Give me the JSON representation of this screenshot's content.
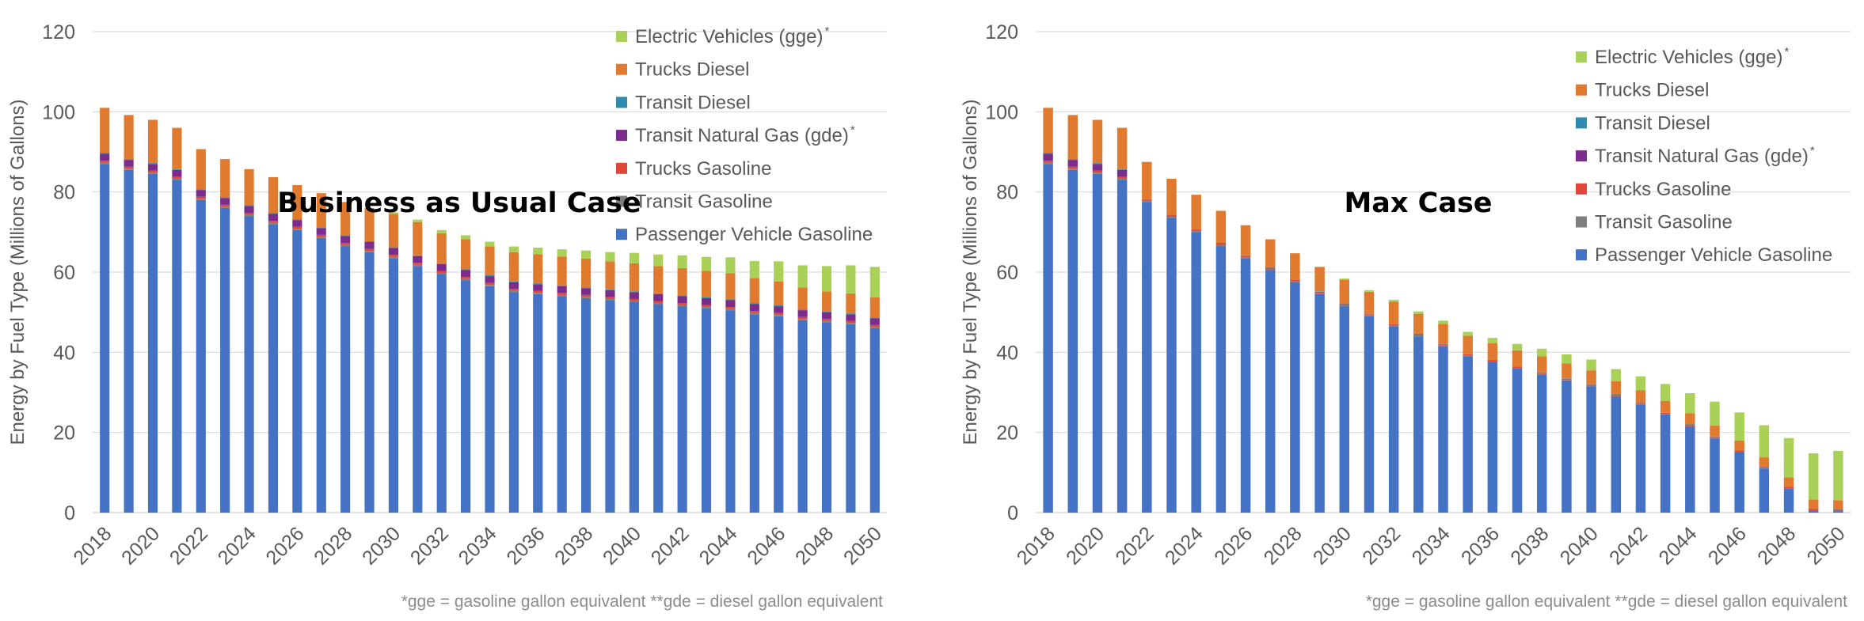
{
  "chart_data": [
    {
      "type": "bar",
      "stacked": true,
      "title": "Business as Usual Case",
      "ylabel": "Energy by Fuel Type (Millions of Gallons)",
      "xlabel": "",
      "ylim": [
        0,
        120
      ],
      "yticks": [
        0,
        20,
        40,
        60,
        80,
        100,
        120
      ],
      "grid": true,
      "legend_position": "top-right",
      "footnote": "*gge = gasoline gallon equivalent   **gde = diesel gallon equivalent",
      "categories": [
        "2018",
        "2019",
        "2020",
        "2021",
        "2022",
        "2023",
        "2024",
        "2025",
        "2026",
        "2027",
        "2028",
        "2029",
        "2030",
        "2031",
        "2032",
        "2033",
        "2034",
        "2035",
        "2036",
        "2037",
        "2038",
        "2039",
        "2040",
        "2041",
        "2042",
        "2043",
        "2044",
        "2045",
        "2046",
        "2047",
        "2048",
        "2049",
        "2050"
      ],
      "x_tick_labels": [
        "2018",
        "2020",
        "2022",
        "2024",
        "2026",
        "2028",
        "2030",
        "2032",
        "2034",
        "2036",
        "2038",
        "2040",
        "2042",
        "2044",
        "2046",
        "2048",
        "2050"
      ],
      "series": [
        {
          "name": "Passenger Vehicle Gasoline",
          "legend_label": "Passenger Vehicle Gasoline",
          "legend_sup": "",
          "color": "#4472c4",
          "values": [
            87,
            85.5,
            84.5,
            83,
            78,
            76,
            74,
            72,
            70.5,
            68.5,
            66.5,
            65,
            63.5,
            61.5,
            59.5,
            58,
            56.5,
            55,
            54.5,
            54,
            53.5,
            53,
            52.5,
            52,
            51.5,
            51,
            50.5,
            49.5,
            49,
            48,
            47.5,
            47,
            46
          ]
        },
        {
          "name": "Transit Gasoline",
          "legend_label": "Transit Gasoline",
          "legend_sup": "",
          "color": "#7f7f7f",
          "values": [
            0.3,
            0.3,
            0.3,
            0.3,
            0.3,
            0.3,
            0.3,
            0.3,
            0.3,
            0.3,
            0.3,
            0.3,
            0.3,
            0.3,
            0.3,
            0.3,
            0.3,
            0.3,
            0.3,
            0.3,
            0.3,
            0.3,
            0.3,
            0.3,
            0.3,
            0.3,
            0.3,
            0.3,
            0.3,
            0.3,
            0.3,
            0.3,
            0.3
          ]
        },
        {
          "name": "Trucks Gasoline",
          "legend_label": "Trucks Gasoline",
          "legend_sup": "",
          "color": "#e0463a",
          "values": [
            0.5,
            0.5,
            0.5,
            0.5,
            0.5,
            0.5,
            0.5,
            0.5,
            0.5,
            0.5,
            0.5,
            0.5,
            0.5,
            0.5,
            0.5,
            0.5,
            0.5,
            0.5,
            0.5,
            0.5,
            0.5,
            0.5,
            0.5,
            0.5,
            0.5,
            0.5,
            0.5,
            0.5,
            0.5,
            0.5,
            0.5,
            0.5,
            0.5
          ]
        },
        {
          "name": "Transit Natural Gas (gde)",
          "legend_label": "Transit Natural Gas (gde)",
          "legend_sup": "*",
          "color": "#7b2c8c",
          "values": [
            1.7,
            1.7,
            1.7,
            1.7,
            1.7,
            1.7,
            1.7,
            1.7,
            1.7,
            1.7,
            1.7,
            1.7,
            1.7,
            1.7,
            1.7,
            1.7,
            1.7,
            1.7,
            1.7,
            1.7,
            1.7,
            1.7,
            1.7,
            1.7,
            1.7,
            1.7,
            1.7,
            1.7,
            1.7,
            1.7,
            1.7,
            1.7,
            1.7
          ]
        },
        {
          "name": "Transit Diesel",
          "legend_label": "Transit Diesel",
          "legend_sup": "",
          "color": "#2e8bad",
          "values": [
            0.2,
            0.2,
            0.2,
            0.2,
            0.2,
            0.2,
            0.2,
            0.2,
            0.2,
            0.2,
            0.2,
            0.2,
            0.2,
            0.2,
            0.2,
            0.2,
            0.2,
            0.2,
            0.2,
            0.2,
            0.2,
            0.2,
            0.2,
            0.2,
            0.2,
            0.2,
            0.2,
            0.2,
            0.2,
            0.2,
            0.2,
            0.2,
            0.2
          ]
        },
        {
          "name": "Trucks Diesel",
          "legend_label": "Trucks Diesel",
          "legend_sup": "",
          "color": "#e07a2e",
          "values": [
            11.3,
            11,
            10.8,
            10.3,
            10,
            9.5,
            9,
            9,
            8.5,
            8.5,
            8.3,
            8.3,
            8.3,
            8.3,
            7.5,
            7.5,
            7.2,
            7.3,
            7.3,
            7.2,
            7.2,
            7,
            7,
            6.8,
            6.8,
            6.6,
            6.5,
            6.3,
            6,
            5.5,
            5,
            5,
            5
          ]
        },
        {
          "name": "Electric Vehicles (gge)",
          "legend_label": "Electric Vehicles (gge)",
          "legend_sup": "*",
          "color": "#a9d157",
          "values": [
            0,
            0,
            0,
            0,
            0,
            0,
            0,
            0,
            0,
            0,
            0,
            0,
            0.4,
            0.6,
            0.8,
            1,
            1.2,
            1.4,
            1.6,
            1.8,
            2,
            2.3,
            2.6,
            2.9,
            3.2,
            3.5,
            4,
            4.3,
            5,
            5.5,
            6.3,
            7,
            7.6
          ]
        }
      ]
    },
    {
      "type": "bar",
      "stacked": true,
      "title": "Max Case",
      "ylabel": "Energy by Fuel Type (Millions of Gallons)",
      "xlabel": "",
      "ylim": [
        0,
        120
      ],
      "yticks": [
        0,
        20,
        40,
        60,
        80,
        100,
        120
      ],
      "grid": true,
      "legend_position": "top-right",
      "footnote": "*gge = gasoline gallon equivalent   **gde = diesel gallon equivalent",
      "categories": [
        "2018",
        "2019",
        "2020",
        "2021",
        "2022",
        "2023",
        "2024",
        "2025",
        "2026",
        "2027",
        "2028",
        "2029",
        "2030",
        "2031",
        "2032",
        "2033",
        "2034",
        "2035",
        "2036",
        "2037",
        "2038",
        "2039",
        "2040",
        "2041",
        "2042",
        "2043",
        "2044",
        "2045",
        "2046",
        "2047",
        "2048",
        "2049",
        "2050"
      ],
      "x_tick_labels": [
        "2018",
        "2020",
        "2022",
        "2024",
        "2026",
        "2028",
        "2030",
        "2032",
        "2034",
        "2036",
        "2038",
        "2040",
        "2042",
        "2044",
        "2046",
        "2048",
        "2050"
      ],
      "series": [
        {
          "name": "Passenger Vehicle Gasoline",
          "legend_label": "Passenger Vehicle Gasoline",
          "legend_sup": "",
          "color": "#4472c4",
          "values": [
            87,
            85.5,
            84.5,
            83,
            77.5,
            73.5,
            70,
            66.5,
            63.5,
            60.5,
            57.5,
            54.5,
            51.5,
            49,
            46.5,
            44,
            41.5,
            39,
            37.5,
            36,
            34.5,
            33,
            31.5,
            29,
            27,
            24.5,
            21.5,
            18.5,
            15,
            11,
            6,
            0.5,
            0.3
          ]
        },
        {
          "name": "Transit Gasoline",
          "legend_label": "Transit Gasoline",
          "legend_sup": "",
          "color": "#7f7f7f",
          "values": [
            0.3,
            0.3,
            0.3,
            0.3,
            0.3,
            0.3,
            0.3,
            0.3,
            0.2,
            0.2,
            0.2,
            0.2,
            0.2,
            0.2,
            0.2,
            0.2,
            0.2,
            0.2,
            0.2,
            0.1,
            0.1,
            0.1,
            0.1,
            0.1,
            0.1,
            0.1,
            0.1,
            0.1,
            0.1,
            0.1,
            0.1,
            0.1,
            0.1
          ]
        },
        {
          "name": "Trucks Gasoline",
          "legend_label": "Trucks Gasoline",
          "legend_sup": "",
          "color": "#e0463a",
          "values": [
            0.5,
            0.5,
            0.5,
            0.5,
            0.4,
            0.4,
            0.4,
            0.4,
            0.4,
            0.4,
            0.4,
            0.4,
            0.3,
            0.3,
            0.3,
            0.3,
            0.3,
            0.3,
            0.3,
            0.3,
            0.3,
            0.3,
            0.3,
            0.3,
            0.3,
            0.3,
            0.3,
            0.3,
            0.3,
            0.3,
            0.3,
            0.3,
            0.3
          ]
        },
        {
          "name": "Transit Natural Gas (gde)",
          "legend_label": "Transit Natural Gas (gde)",
          "legend_sup": "*",
          "color": "#7b2c8c",
          "values": [
            1.7,
            1.7,
            1.7,
            1.7,
            0,
            0,
            0,
            0,
            0,
            0,
            0,
            0,
            0,
            0,
            0,
            0,
            0,
            0,
            0,
            0,
            0,
            0,
            0,
            0,
            0,
            0,
            0,
            0,
            0,
            0,
            0,
            0,
            0
          ]
        },
        {
          "name": "Transit Diesel",
          "legend_label": "Transit Diesel",
          "legend_sup": "",
          "color": "#2e8bad",
          "values": [
            0.2,
            0.2,
            0.2,
            0.2,
            0.1,
            0.1,
            0.1,
            0.1,
            0.1,
            0.1,
            0.1,
            0.1,
            0.1,
            0.1,
            0.1,
            0.1,
            0.1,
            0.1,
            0.1,
            0.1,
            0.1,
            0.1,
            0.1,
            0.1,
            0.1,
            0.1,
            0.1,
            0.1,
            0.1,
            0.1,
            0.1,
            0.1,
            0.1
          ]
        },
        {
          "name": "Trucks Diesel",
          "legend_label": "Trucks Diesel",
          "legend_sup": "",
          "color": "#e07a2e",
          "values": [
            11.3,
            11,
            10.8,
            10.3,
            9.2,
            9,
            8.5,
            8,
            7.5,
            7,
            6.5,
            6,
            6,
            5.5,
            5.5,
            5,
            5,
            4.5,
            4.2,
            4,
            4,
            3.7,
            3.5,
            3.3,
            3,
            2.9,
            2.8,
            2.7,
            2.5,
            2.3,
            2.3,
            2.3,
            2.3
          ]
        },
        {
          "name": "Electric Vehicles (gge)",
          "legend_label": "Electric Vehicles (gge)",
          "legend_sup": "*",
          "color": "#a9d157",
          "values": [
            0,
            0,
            0,
            0,
            0,
            0,
            0,
            0,
            0,
            0,
            0,
            0.2,
            0.3,
            0.4,
            0.5,
            0.6,
            0.8,
            1,
            1.3,
            1.6,
            1.9,
            2.3,
            2.7,
            3,
            3.5,
            4.2,
            5,
            6,
            7,
            8,
            9.8,
            11.5,
            12.3
          ]
        }
      ]
    }
  ]
}
